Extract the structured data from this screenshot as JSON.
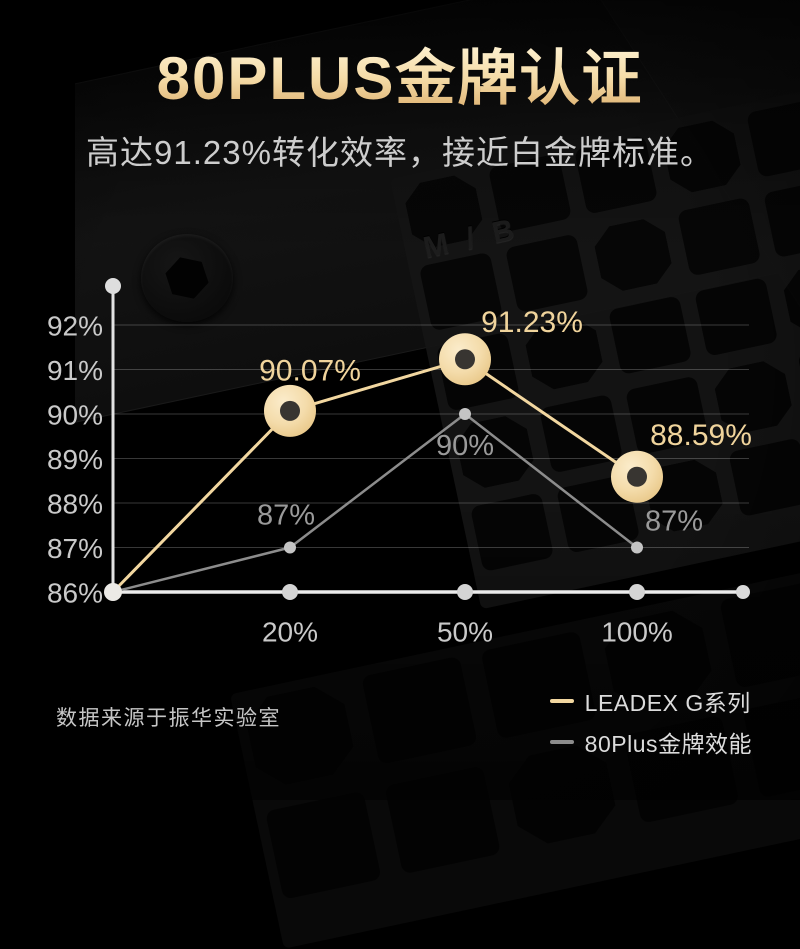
{
  "header": {
    "title": "80PLUS金牌认证",
    "subtitle": "高达91.23%转化效率，接近白金牌标准。"
  },
  "chart_data": {
    "type": "line",
    "x": [
      0,
      20,
      50,
      100
    ],
    "x_ticks": [
      "20%",
      "50%",
      "100%"
    ],
    "y_ticks": [
      "92%",
      "91%",
      "90%",
      "89%",
      "88%",
      "87%",
      "86%"
    ],
    "ylim": [
      86,
      93
    ],
    "grid": true,
    "legend_position": "bottom-right",
    "series": [
      {
        "name": "LEADEX G系列",
        "color": "#f2d7a0",
        "values": [
          86,
          90.07,
          91.23,
          88.59
        ],
        "point_labels": [
          "",
          "90.07%",
          "91.23%",
          "88.59%"
        ]
      },
      {
        "name": "80Plus金牌效能",
        "color": "#8c8c8c",
        "values": [
          86,
          87,
          90,
          87
        ],
        "point_labels": [
          "",
          "87%",
          "90%",
          "87%"
        ]
      }
    ]
  },
  "footer": {
    "source_note": "数据来源于振华实验室"
  },
  "background": {
    "psu_label": "M / B"
  },
  "colors": {
    "title_gold_light": "#fdf0cf",
    "title_gold_dark": "#ddb06f",
    "gold_label": "#f0d49c",
    "gray_label": "#9a9a9a",
    "axis": "#e3e3e3",
    "tick_label": "#c9c9c9"
  }
}
